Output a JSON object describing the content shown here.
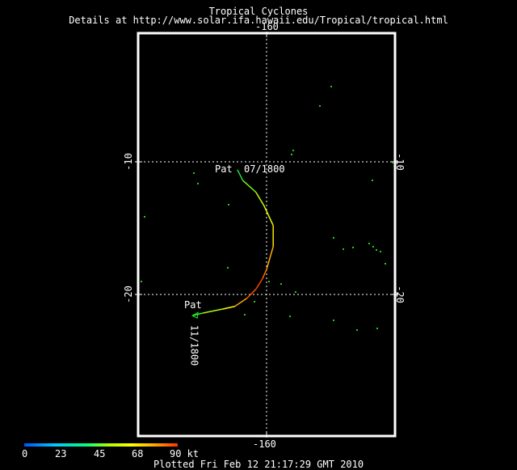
{
  "header": {
    "title": "Tropical Cyclones",
    "details": "Details at http://www.solar.ifa.hawaii.edu/Tropical/tropical.html"
  },
  "axes": {
    "lon_top": "-160",
    "lon_bottom": "-160",
    "lat_left": [
      "-10",
      "-20"
    ],
    "lat_right": [
      "-10",
      "-20"
    ]
  },
  "storm": {
    "name": "Pat",
    "start_label": "07/1800",
    "end_label": "11/1800",
    "track": [
      {
        "lon": -162.2,
        "lat": -10.6,
        "kt": 40
      },
      {
        "lon": -161.8,
        "lat": -11.4,
        "kt": 45
      },
      {
        "lon": -160.8,
        "lat": -12.3,
        "kt": 55
      },
      {
        "lon": -160.2,
        "lat": -13.3,
        "kt": 62
      },
      {
        "lon": -159.5,
        "lat": -14.8,
        "kt": 68
      },
      {
        "lon": -159.5,
        "lat": -16.4,
        "kt": 75
      },
      {
        "lon": -160.0,
        "lat": -18.1,
        "kt": 82
      },
      {
        "lon": -160.3,
        "lat": -18.8,
        "kt": 88
      },
      {
        "lon": -160.8,
        "lat": -19.6,
        "kt": 90
      },
      {
        "lon": -161.5,
        "lat": -20.3,
        "kt": 85
      },
      {
        "lon": -162.4,
        "lat": -20.9,
        "kt": 75
      },
      {
        "lon": -163.3,
        "lat": -21.1,
        "kt": 62
      },
      {
        "lon": -164.8,
        "lat": -21.4,
        "kt": 50
      },
      {
        "lon": -165.6,
        "lat": -21.6,
        "kt": 40
      }
    ]
  },
  "legend": {
    "ticks": [
      "0",
      "23",
      "45",
      "68",
      "90 kt"
    ],
    "colors": [
      "#0050ff",
      "#00c8ff",
      "#00ff80",
      "#aaff00",
      "#ffff00",
      "#ffa500",
      "#ff3000"
    ]
  },
  "footer": {
    "plotted": "Plotted Fri Feb 12 21:17:29 GMT 2010"
  },
  "colors": {
    "background": "#000000",
    "frame": "#ffffff",
    "speckle": "#22cc22"
  }
}
